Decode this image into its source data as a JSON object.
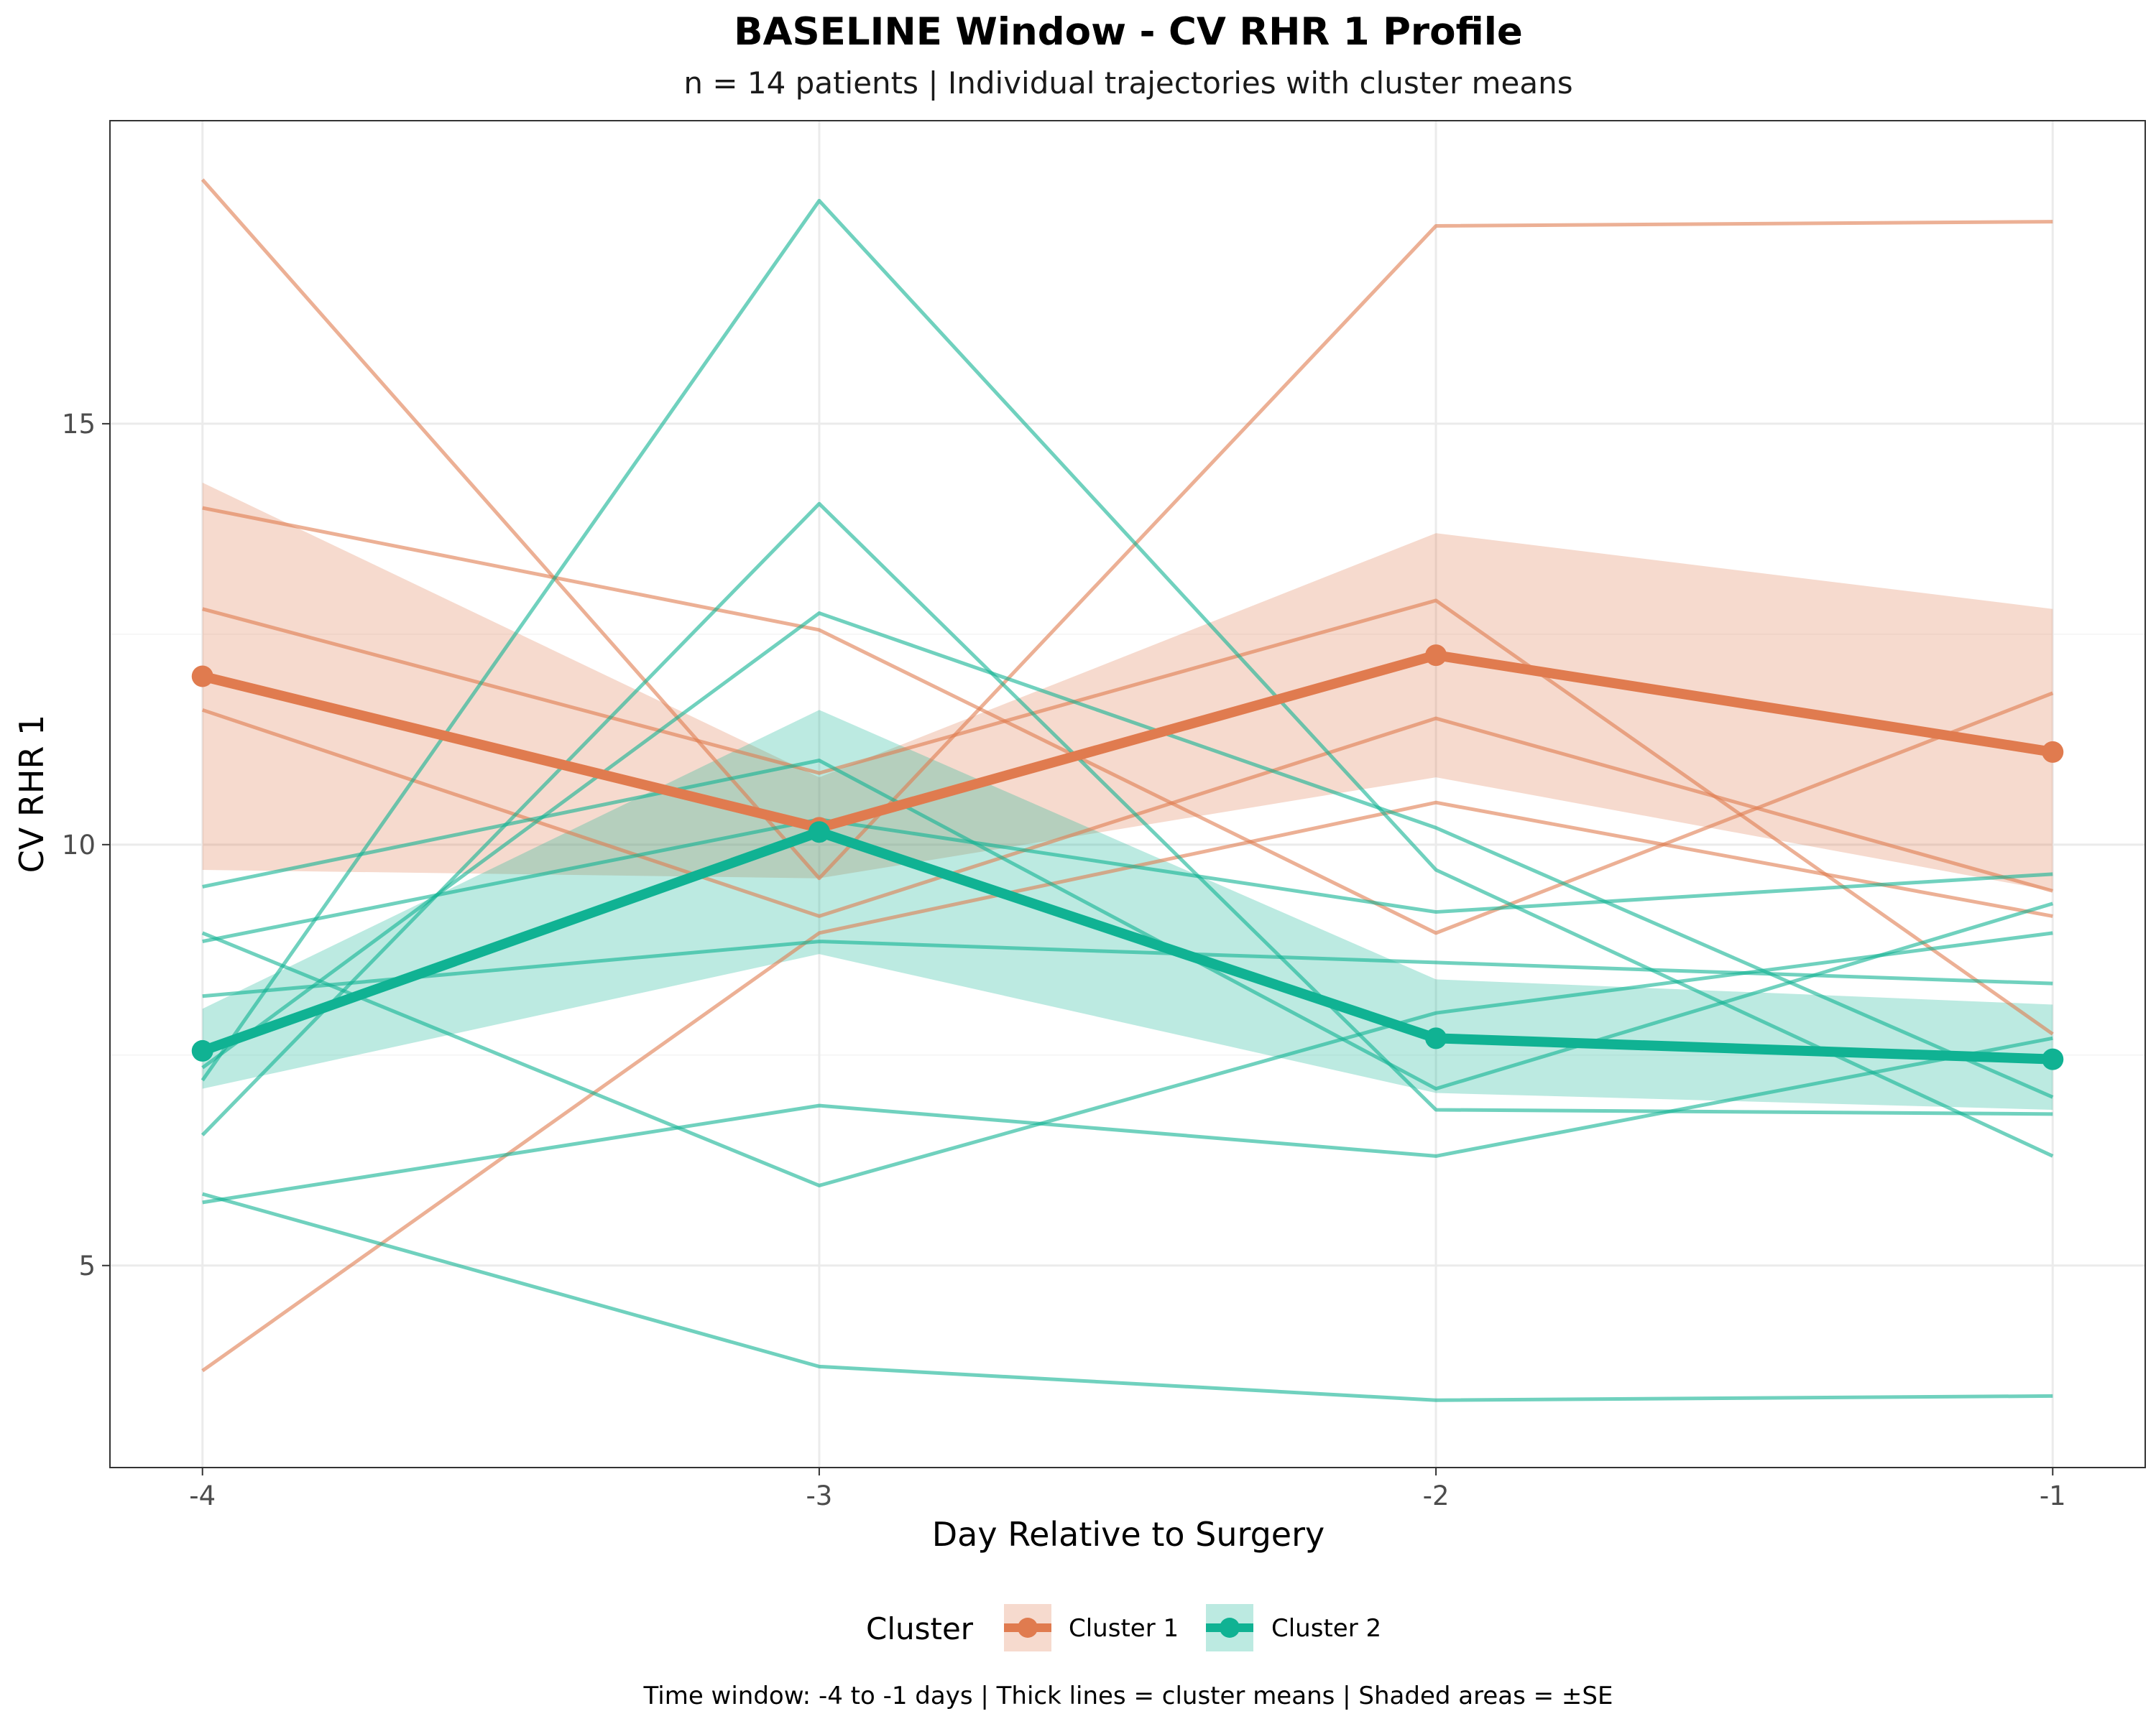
{
  "chart_data": {
    "type": "line",
    "title": "BASELINE Window - CV RHR 1 Profile",
    "subtitle": "n = 14 patients | Individual trajectories with cluster means",
    "xlabel": "Day Relative to Surgery",
    "ylabel": "CV RHR 1",
    "caption": "Time window: -4 to -1 days | Thick lines = cluster means | Shaded areas = ±SE",
    "x": [
      -4,
      -3,
      -2,
      -1
    ],
    "x_tick_labels": [
      "-4",
      "-3",
      "-2",
      "-1"
    ],
    "y_ticks": [
      5,
      10,
      15
    ],
    "y_tick_labels": [
      "5",
      "10",
      "15"
    ],
    "xlim": [
      -4.15,
      -0.85
    ],
    "ylim": [
      2.6,
      18.6
    ],
    "grid": true,
    "legend": {
      "title": "Cluster",
      "position": "bottom",
      "entries": [
        "Cluster 1",
        "Cluster 2"
      ]
    },
    "colors": {
      "cluster1": "#E07B4F",
      "cluster2": "#10B293"
    },
    "clusters": [
      {
        "name": "Cluster 1",
        "mean": [
          12.0,
          10.2,
          12.25,
          11.1
        ],
        "se_lower": [
          9.7,
          9.6,
          10.8,
          9.45
        ],
        "se_upper": [
          14.3,
          10.8,
          13.7,
          12.8
        ],
        "individuals": [
          [
            17.9,
            9.6,
            17.35,
            17.4
          ],
          [
            14.0,
            12.55,
            8.95,
            11.8
          ],
          [
            12.8,
            10.85,
            12.9,
            7.75
          ],
          [
            11.6,
            9.15,
            11.5,
            9.45
          ],
          [
            3.75,
            8.95,
            10.5,
            9.15
          ]
        ]
      },
      {
        "name": "Cluster 2",
        "mean": [
          7.55,
          10.15,
          7.7,
          7.45
        ],
        "se_lower": [
          7.1,
          8.7,
          7.05,
          6.85
        ],
        "se_upper": [
          8.05,
          11.6,
          8.4,
          8.1
        ],
        "individuals": [
          [
            9.5,
            11.0,
            7.1,
            9.3
          ],
          [
            7.2,
            17.65,
            9.7,
            6.3
          ],
          [
            6.55,
            14.05,
            6.85,
            6.8
          ],
          [
            7.35,
            12.75,
            10.2,
            7.0
          ],
          [
            8.85,
            10.3,
            9.2,
            9.65
          ],
          [
            8.2,
            8.85,
            8.6,
            8.35
          ],
          [
            8.95,
            5.95,
            8.0,
            8.95
          ],
          [
            5.75,
            6.9,
            6.3,
            7.7
          ],
          [
            5.85,
            3.8,
            3.4,
            3.45
          ]
        ]
      }
    ]
  }
}
